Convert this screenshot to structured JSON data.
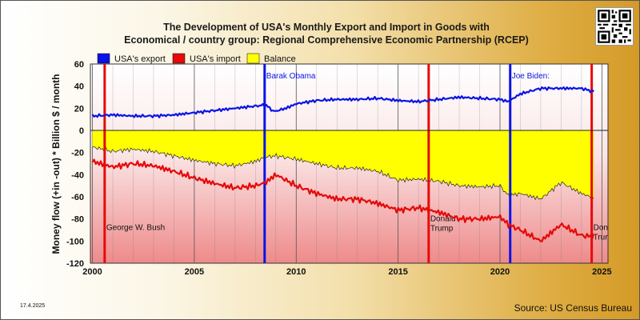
{
  "chart_data": {
    "type": "line",
    "title_lines": [
      "The Development of USA's Monthly Export and Import in Goods with",
      "Economical / country group: Regional Comprehensive Economic Partnership (RCEP)"
    ],
    "ylabel": "Money flow (+in -out) * Billion $ / month",
    "xlabel": "",
    "ylim": [
      -120,
      60
    ],
    "xlim": [
      1999.9,
      2025.3
    ],
    "yticks": [
      60,
      40,
      20,
      0,
      -20,
      -40,
      -60,
      -80,
      -100,
      -120
    ],
    "xticks": [
      2000,
      2005,
      2010,
      2015,
      2020,
      2025
    ],
    "grid": "vertical at years",
    "legend_position": "top-left",
    "series": [
      {
        "name": "USA's export",
        "color": "#0a14e6",
        "x": [
          2000,
          2001,
          2002,
          2003,
          2004,
          2005,
          2006,
          2007,
          2008,
          2008.5,
          2008.9,
          2009.5,
          2010,
          2011,
          2012,
          2013,
          2014,
          2015,
          2016,
          2017,
          2018,
          2019,
          2020,
          2020.4,
          2021,
          2022,
          2023,
          2024,
          2024.6
        ],
        "values": [
          13,
          14,
          13,
          13,
          14,
          16,
          18,
          20,
          22,
          23,
          17,
          20,
          24,
          27,
          28,
          28,
          29,
          27,
          26,
          28,
          30,
          29,
          28,
          26,
          33,
          38,
          38,
          38,
          35
        ]
      },
      {
        "name": "USA's import",
        "color": "#e60a0a",
        "x": [
          2000,
          2001,
          2002,
          2003,
          2004,
          2005,
          2006,
          2007,
          2008,
          2008.5,
          2009,
          2010,
          2011,
          2012,
          2013,
          2014,
          2015,
          2016,
          2017,
          2018,
          2019,
          2020,
          2020.4,
          2021,
          2022,
          2023,
          2024,
          2024.6
        ],
        "values": [
          -28,
          -33,
          -30,
          -32,
          -37,
          -43,
          -48,
          -52,
          -50,
          -47,
          -40,
          -50,
          -57,
          -62,
          -62,
          -66,
          -72,
          -70,
          -74,
          -80,
          -80,
          -78,
          -85,
          -90,
          -100,
          -85,
          -95,
          -96
        ]
      },
      {
        "name": "Balance",
        "color": "#ffff00",
        "x": [
          2000,
          2001,
          2002,
          2003,
          2004,
          2005,
          2006,
          2007,
          2008,
          2008.5,
          2009,
          2010,
          2011,
          2012,
          2013,
          2014,
          2015,
          2016,
          2017,
          2018,
          2019,
          2020,
          2020.4,
          2021,
          2022,
          2023,
          2024,
          2024.6
        ],
        "values": [
          -15,
          -19,
          -17,
          -19,
          -23,
          -27,
          -30,
          -32,
          -28,
          -24,
          -23,
          -26,
          -30,
          -34,
          -34,
          -37,
          -45,
          -44,
          -46,
          -50,
          -51,
          -50,
          -59,
          -57,
          -62,
          -47,
          -57,
          -61
        ]
      }
    ],
    "presidents": [
      {
        "year": 2000.6,
        "color": "#e60a0a",
        "label": [
          "George W. Bush"
        ],
        "label_y": -90,
        "label_color": "#111111"
      },
      {
        "year": 2008.45,
        "color": "#0a14e6",
        "label": [
          "Barak Obama"
        ],
        "label_y": 47,
        "label_color": "#0a14e6"
      },
      {
        "year": 2016.5,
        "color": "#e60a0a",
        "label": [
          "Donald",
          "Trump"
        ],
        "label_y": -82,
        "label_color": "#111111"
      },
      {
        "year": 2020.5,
        "color": "#0a14e6",
        "label": [
          "Joe Biden:"
        ],
        "label_y": 47,
        "label_color": "#0a14e6"
      },
      {
        "year": 2024.5,
        "color": "#e60a0a",
        "label": [
          "Don",
          "Trur"
        ],
        "label_y": -90,
        "label_color": "#111111"
      }
    ]
  },
  "footer": {
    "date": "17.4.2025",
    "source": "Source: US Census Bureau"
  }
}
